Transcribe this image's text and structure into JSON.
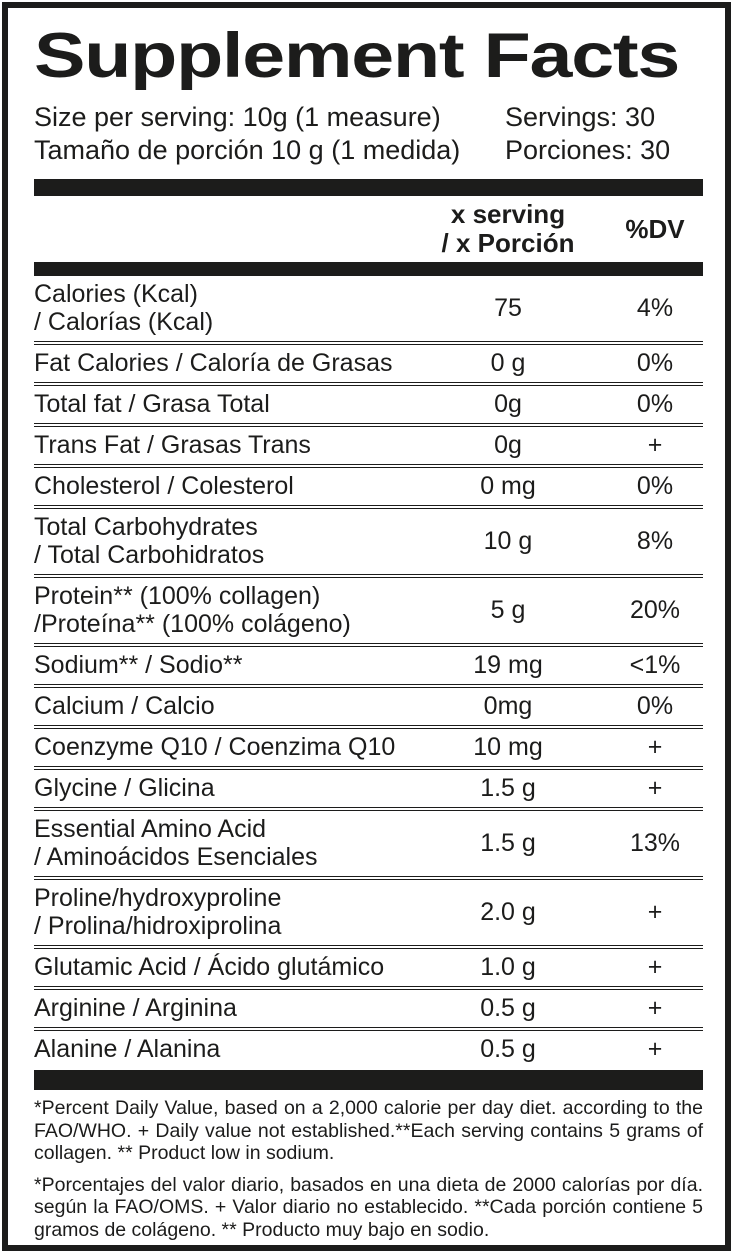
{
  "label": {
    "title": "Supplement Facts",
    "serving": {
      "size_en": "Size per serving: 10g (1 measure)",
      "size_es": "Tamaño de porción 10 g (1 medida)",
      "servings_en": "Servings: 30",
      "servings_es": "Porciones: 30"
    },
    "columns": {
      "amount_line1": "x serving",
      "amount_line2": "/ x Porción",
      "dv": "%DV"
    },
    "rows": [
      {
        "name": [
          "Calories (Kcal)",
          "/ Calorías (Kcal)"
        ],
        "amount": "75",
        "dv": "4%"
      },
      {
        "name": [
          "Fat Calories / Caloría de Grasas"
        ],
        "amount": "0 g",
        "dv": "0%"
      },
      {
        "name": [
          "Total fat / Grasa Total"
        ],
        "amount": "0g",
        "dv": "0%"
      },
      {
        "name": [
          "Trans Fat / Grasas Trans"
        ],
        "amount": "0g",
        "dv": "+"
      },
      {
        "name": [
          "Cholesterol / Colesterol"
        ],
        "amount": "0 mg",
        "dv": "0%"
      },
      {
        "name": [
          "Total Carbohydrates",
          "/ Total Carbohidratos"
        ],
        "amount": "10 g",
        "dv": "8%"
      },
      {
        "name": [
          "Protein** (100% collagen)",
          "/Proteína** (100% colágeno)"
        ],
        "amount": "5 g",
        "dv": "20%"
      },
      {
        "name": [
          "Sodium** / Sodio**"
        ],
        "amount": "19 mg",
        "dv": "<1%"
      },
      {
        "name": [
          "Calcium / Calcio"
        ],
        "amount": "0mg",
        "dv": "0%"
      },
      {
        "name": [
          "Coenzyme Q10 / Coenzima Q10"
        ],
        "amount": "10 mg",
        "dv": "+"
      },
      {
        "name": [
          "Glycine / Glicina"
        ],
        "amount": "1.5 g",
        "dv": "+"
      },
      {
        "name": [
          "Essential Amino Acid",
          "/ Aminoácidos Esenciales"
        ],
        "amount": "1.5 g",
        "dv": "13%"
      },
      {
        "name": [
          "Proline/hydroxyproline",
          "/ Prolina/hidroxiprolina"
        ],
        "amount": "2.0 g",
        "dv": "+"
      },
      {
        "name": [
          "Glutamic Acid / Ácido glutámico"
        ],
        "amount": "1.0 g",
        "dv": "+"
      },
      {
        "name": [
          "Arginine / Arginina"
        ],
        "amount": "0.5 g",
        "dv": "+"
      },
      {
        "name": [
          "Alanine / Alanina"
        ],
        "amount": "0.5 g",
        "dv": "+"
      }
    ],
    "footnotes": {
      "en": "*Percent Daily Value, based on a 2,000 calorie per day diet. according to the FAO/WHO. + Daily value not established.**Each serving contains 5 grams of collagen. ** Product low in sodium.",
      "es": "*Porcentajes del valor diario, basados en una dieta de 2000 calorías por día. según la FAO/OMS. + Valor diario no establecido. **Cada porción contiene 5 gramos de colágeno. ** Producto muy bajo en sodio."
    },
    "colors": {
      "ink": "#1c1c1b",
      "background": "#ffffff"
    }
  }
}
